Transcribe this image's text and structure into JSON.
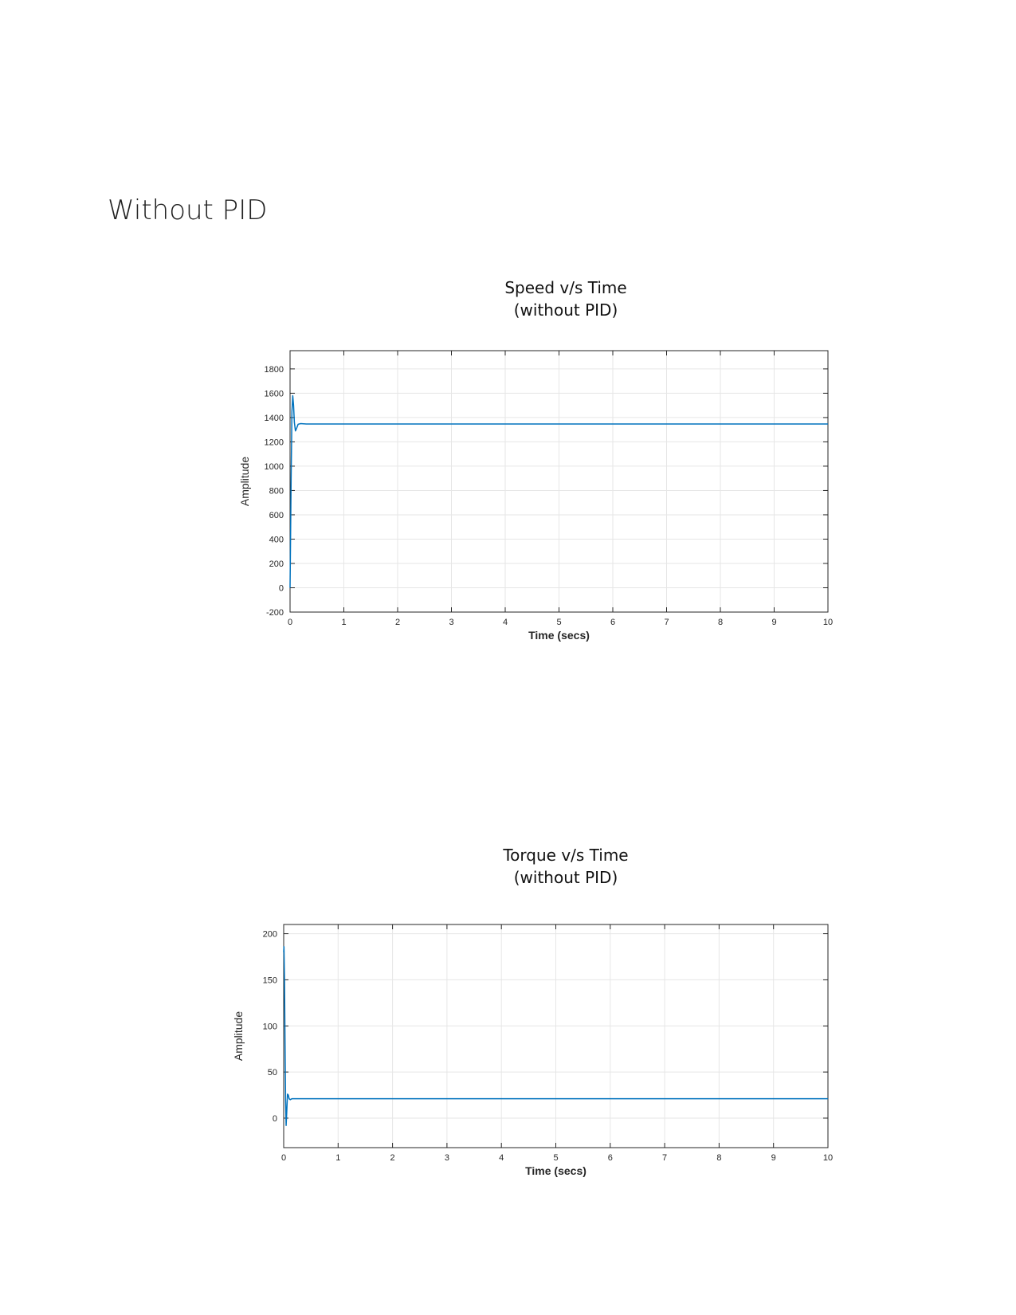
{
  "page": {
    "heading": "Without PID"
  },
  "chart_data": [
    {
      "type": "line",
      "title": "Speed v/s Time",
      "subtitle": "(without PID)",
      "xlabel": "Time (secs)",
      "ylabel": "Amplitude",
      "xlim": [
        0,
        10
      ],
      "ylim": [
        -200,
        1950
      ],
      "xticks": [
        "0",
        "1",
        "2",
        "3",
        "4",
        "5",
        "6",
        "7",
        "8",
        "9",
        "10"
      ],
      "yticks": [
        "-200",
        "0",
        "200",
        "400",
        "600",
        "800",
        "1000",
        "1200",
        "1400",
        "1600",
        "1800"
      ],
      "xtick_values": [
        0,
        1,
        2,
        3,
        4,
        5,
        6,
        7,
        8,
        9,
        10
      ],
      "ytick_values": [
        -200,
        0,
        200,
        400,
        600,
        800,
        1000,
        1200,
        1400,
        1600,
        1800
      ],
      "grid": true,
      "line_color": "#0072BD",
      "series": [
        {
          "x": [
            0,
            0.02,
            0.035,
            0.05,
            0.065,
            0.08,
            0.1,
            0.12,
            0.15,
            0.2,
            0.3,
            0.5,
            1,
            2,
            5,
            10
          ],
          "y": [
            0,
            900,
            1450,
            1580,
            1500,
            1360,
            1290,
            1310,
            1345,
            1350,
            1347,
            1347,
            1347,
            1347,
            1347,
            1347
          ]
        }
      ]
    },
    {
      "type": "line",
      "title": "Torque v/s Time",
      "subtitle": "(without PID)",
      "xlabel": "Time (secs)",
      "ylabel": "Amplitude",
      "xlim": [
        0,
        10
      ],
      "ylim": [
        -32,
        210
      ],
      "xticks": [
        "0",
        "1",
        "2",
        "3",
        "4",
        "5",
        "6",
        "7",
        "8",
        "9",
        "10"
      ],
      "yticks": [
        "0",
        "50",
        "100",
        "150",
        "200"
      ],
      "xtick_values": [
        0,
        1,
        2,
        3,
        4,
        5,
        6,
        7,
        8,
        9,
        10
      ],
      "ytick_values": [
        0,
        50,
        100,
        150,
        200
      ],
      "grid": true,
      "line_color": "#0072BD",
      "series": [
        {
          "x": [
            0,
            0.005,
            0.015,
            0.025,
            0.035,
            0.045,
            0.055,
            0.07,
            0.085,
            0.1,
            0.12,
            0.15,
            0.2,
            0.5,
            1,
            10
          ],
          "y": [
            180,
            186,
            150,
            80,
            20,
            -8,
            5,
            26,
            25,
            21,
            20,
            21,
            21,
            21,
            21,
            21
          ]
        }
      ]
    }
  ]
}
